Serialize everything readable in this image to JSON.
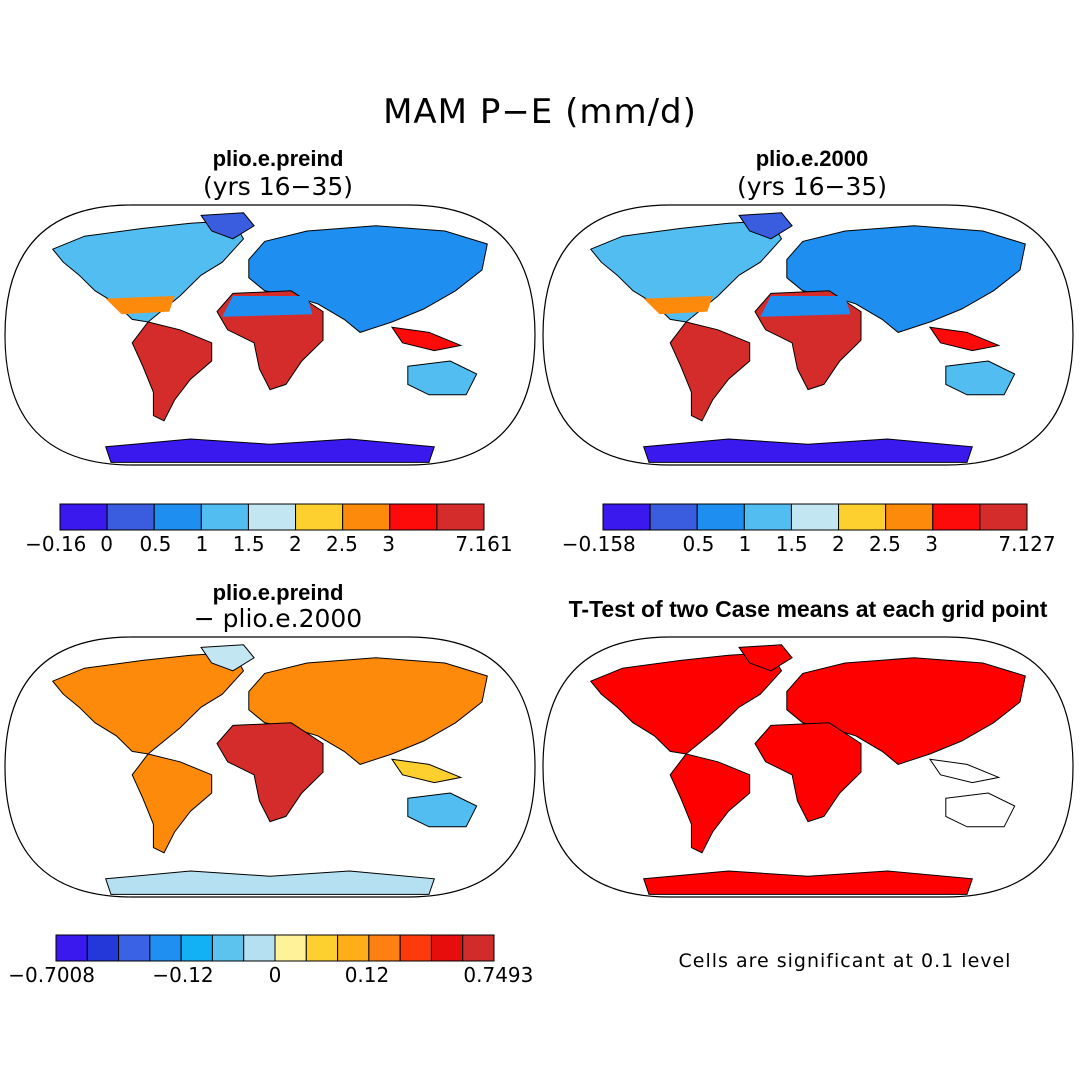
{
  "figure": {
    "title": "MAM P−E (mm/d)"
  },
  "panels": [
    {
      "title": "plio.e.preind",
      "subtitle": "(yrs 16−35)",
      "colorbar": {
        "colors": [
          "#3a19ef",
          "#3a5de0",
          "#1e8ff0",
          "#51bdf0",
          "#c3e6f3",
          "#fed02f",
          "#fe8a0c",
          "#fd0a0a",
          "#d42b2b"
        ],
        "labels": [
          "−0.16",
          "0",
          "0.5",
          "1",
          "1.5",
          "2",
          "2.5",
          "3",
          "7.161"
        ]
      }
    },
    {
      "title": "plio.e.2000",
      "subtitle": "(yrs 16−35)",
      "colorbar": {
        "colors": [
          "#3a19ef",
          "#3a5de0",
          "#1e8ff0",
          "#51bdf0",
          "#c3e6f3",
          "#fed02f",
          "#fe8a0c",
          "#fd0a0a",
          "#d42b2b"
        ],
        "labels": [
          "−0.158",
          "0.5",
          "1",
          "1.5",
          "2",
          "2.5",
          "3",
          "7.127"
        ]
      }
    },
    {
      "title": "plio.e.preind",
      "subtitle": "− plio.e.2000",
      "colorbar": {
        "colors": [
          "#3a19ef",
          "#2437d9",
          "#3a62e4",
          "#1f8ff2",
          "#12b0f5",
          "#5cc3ef",
          "#b5e0f2",
          "#fff39a",
          "#fed02f",
          "#feae18",
          "#fe7f12",
          "#fd3a0c",
          "#e60d0d",
          "#d22b2b"
        ],
        "labels": [
          "−0.7008",
          "−0.12",
          "0",
          "0.12",
          "0.7493"
        ]
      }
    },
    {
      "title": "T-Test of two Case means at each grid point",
      "note": "Cells are significant at 0.1 level"
    }
  ],
  "colors": {
    "land_outline": "#000000",
    "significant": "#ff0000"
  }
}
